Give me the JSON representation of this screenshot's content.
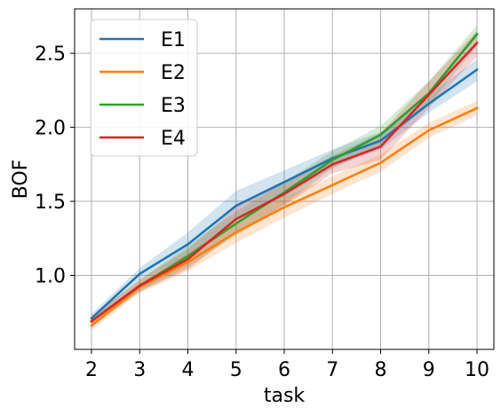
{
  "chart_data": {
    "type": "line",
    "xlabel": "task",
    "ylabel": "BOF",
    "x": [
      2,
      3,
      4,
      5,
      6,
      7,
      8,
      9,
      10
    ],
    "xlim": [
      1.65,
      10.35
    ],
    "ylim": [
      0.5,
      2.8
    ],
    "xticks": [
      "2",
      "3",
      "4",
      "5",
      "6",
      "7",
      "8",
      "9",
      "10"
    ],
    "yticks": [
      "1.0",
      "1.5",
      "2.0",
      "2.5"
    ],
    "ytick_values": [
      1.0,
      1.5,
      2.0,
      2.5
    ],
    "grid": true,
    "legend_position": "top-left",
    "series": [
      {
        "name": "E1",
        "color": "#1f77b4",
        "values": [
          0.71,
          1.01,
          1.21,
          1.47,
          1.63,
          1.79,
          1.91,
          2.16,
          2.39
        ],
        "lower": [
          0.69,
          0.97,
          1.13,
          1.37,
          1.53,
          1.73,
          1.85,
          2.1,
          2.31
        ],
        "upper": [
          0.74,
          1.05,
          1.29,
          1.57,
          1.71,
          1.85,
          1.97,
          2.22,
          2.46
        ]
      },
      {
        "name": "E2",
        "color": "#ff7f0e",
        "values": [
          0.66,
          0.92,
          1.09,
          1.29,
          1.46,
          1.61,
          1.76,
          1.98,
          2.13
        ],
        "lower": [
          0.63,
          0.88,
          1.03,
          1.22,
          1.39,
          1.55,
          1.7,
          1.93,
          2.08
        ],
        "upper": [
          0.69,
          0.96,
          1.15,
          1.36,
          1.53,
          1.67,
          1.82,
          2.03,
          2.18
        ]
      },
      {
        "name": "E3",
        "color": "#2ca02c",
        "values": [
          0.69,
          0.93,
          1.13,
          1.35,
          1.56,
          1.78,
          1.95,
          2.23,
          2.63
        ],
        "lower": [
          0.66,
          0.89,
          1.06,
          1.27,
          1.48,
          1.72,
          1.88,
          2.15,
          2.55
        ],
        "upper": [
          0.72,
          0.97,
          1.2,
          1.43,
          1.63,
          1.84,
          2.01,
          2.31,
          2.69
        ]
      },
      {
        "name": "E4",
        "color": "#d62728",
        "values": [
          0.69,
          0.93,
          1.11,
          1.38,
          1.55,
          1.75,
          1.87,
          2.22,
          2.57
        ],
        "lower": [
          0.66,
          0.89,
          1.04,
          1.29,
          1.47,
          1.69,
          1.78,
          2.13,
          2.48
        ],
        "upper": [
          0.72,
          0.97,
          1.18,
          1.46,
          1.63,
          1.81,
          1.96,
          2.31,
          2.65
        ]
      }
    ]
  }
}
